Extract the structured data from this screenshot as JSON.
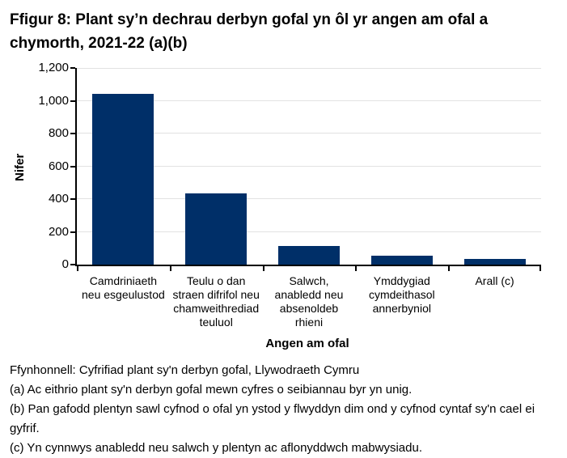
{
  "title": "Ffigur 8: Plant sy’n dechrau derbyn gofal yn ôl yr angen am ofal a chymorth, 2021-22 (a)(b)",
  "chart_data": {
    "type": "bar",
    "title": "Ffigur 8: Plant sy’n dechrau derbyn gofal yn ôl yr angen am ofal a chymorth, 2021-22 (a)(b)",
    "categories": [
      "Camdriniaeth\nneu esgeulustod",
      "Teulu o dan\nstraen difrifol neu\nchamweithrediad\nteuluol",
      "Salwch,\nanabledd neu\nabsenoldeb\nrhieni",
      "Ymddygiad\ncymdeithasol\nannerbyniol",
      "Arall (c)"
    ],
    "values": [
      1040,
      435,
      115,
      55,
      35
    ],
    "xlabel": "Angen am ofal",
    "ylabel": "Nifer",
    "ylim": [
      0,
      1200
    ],
    "ytick_interval": 200,
    "ytick_labels": [
      "0",
      "200",
      "400",
      "600",
      "800",
      "1,000",
      "1,200"
    ],
    "grid": true,
    "legend": "none",
    "bar_color": "#002f68",
    "gridline_color": "#e2e2e2",
    "axis_color": "#000000"
  },
  "footnotes": {
    "source": "Ffynhonnell: Cyfrifiad plant sy'n derbyn gofal, Llywodraeth Cymru",
    "note_a": "(a) Ac eithrio plant sy'n derbyn gofal mewn cyfres o seibiannau byr yn unig.",
    "note_b": "(b) Pan gafodd plentyn sawl cyfnod o ofal yn ystod y flwyddyn dim ond y cyfnod cyntaf sy'n cael ei gyfrif.",
    "note_c": "(c) Yn cynnwys anabledd neu salwch y plentyn ac aflonyddwch mabwysiadu."
  }
}
